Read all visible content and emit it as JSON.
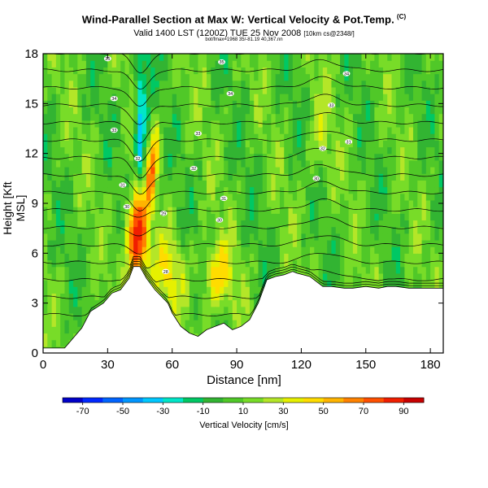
{
  "header": {
    "title": "Wind-Parallel Section at Max W: Vertical Velocity & Pot.Temp.",
    "copyright": "(C)",
    "subtitle": "Valid 1400 LST (1200Z) TUE 25 Nov 2008",
    "subtitle_small": "[10km cs@2348/]",
    "meta": "bot/fmax=1968 35/-81.19 40,367.nn"
  },
  "chart_data": {
    "type": "heatmap",
    "xlabel": "Distance [nm]",
    "ylabel": "Height [Kft MSL]",
    "xlim": [
      0,
      186
    ],
    "ylim": [
      0,
      18
    ],
    "x_ticks": [
      "0",
      "30",
      "60",
      "90",
      "120",
      "150",
      "180"
    ],
    "y_ticks": [
      "0",
      "3",
      "6",
      "9",
      "12",
      "15",
      "18"
    ],
    "x_tick_values": [
      0,
      30,
      60,
      90,
      120,
      150,
      180
    ],
    "y_tick_values": [
      0,
      3,
      6,
      9,
      12,
      15,
      18
    ],
    "colorbar": {
      "label": "Vertical Velocity [cm/s]",
      "tick_labels": [
        "-70",
        "-50",
        "-30",
        "-10",
        "10",
        "30",
        "50",
        "70",
        "90"
      ],
      "tick_values": [
        -70,
        -50,
        -30,
        -10,
        10,
        30,
        50,
        70,
        90
      ],
      "colors": [
        "#0000c8",
        "#0028ff",
        "#0064ff",
        "#0096ff",
        "#00c8ff",
        "#00e6c8",
        "#00c864",
        "#32b432",
        "#50c828",
        "#78dc28",
        "#b4e628",
        "#e6f000",
        "#ffdc00",
        "#ffb400",
        "#ff8200",
        "#ff5000",
        "#f01e00",
        "#c80000"
      ],
      "color_bounds": [
        -80,
        -70,
        -60,
        -50,
        -40,
        -30,
        -20,
        -10,
        0,
        10,
        20,
        30,
        40,
        50,
        60,
        70,
        80,
        90,
        100
      ]
    },
    "terrain_profile": {
      "x": [
        0,
        10,
        18,
        22,
        28,
        32,
        36,
        40,
        42,
        45,
        48,
        52,
        55,
        58,
        60,
        64,
        68,
        72,
        76,
        80,
        84,
        88,
        92,
        96,
        100,
        104,
        108,
        112,
        116,
        118,
        124,
        130,
        134,
        140,
        144,
        150,
        156,
        160,
        164,
        170,
        176,
        186
      ],
      "height": [
        0.3,
        0.3,
        1.5,
        2.5,
        3.0,
        3.6,
        3.8,
        4.5,
        5.2,
        5.2,
        4.5,
        3.8,
        3.4,
        3.0,
        2.4,
        1.6,
        1.2,
        1.0,
        1.4,
        1.6,
        1.8,
        1.4,
        1.6,
        2.0,
        3.0,
        4.4,
        4.6,
        4.7,
        4.9,
        4.8,
        4.6,
        4.0,
        4.0,
        3.9,
        3.9,
        4.0,
        3.9,
        4.0,
        4.0,
        3.9,
        3.9,
        3.9
      ]
    },
    "features": [
      {
        "name": "updraft",
        "x": 44,
        "height": 7.0,
        "value": 90
      },
      {
        "name": "downdraft",
        "x": 46,
        "height": 15.0,
        "value": -30
      },
      {
        "name": "updraft",
        "x": 81,
        "height": 4.6,
        "value": 40
      },
      {
        "name": "updraft",
        "x": 58,
        "height": 4.7,
        "value": 30
      }
    ],
    "contour_labels": [
      {
        "text": "35",
        "x": 30,
        "height": 17.7
      },
      {
        "text": "34",
        "x": 33,
        "height": 15.3
      },
      {
        "text": "33",
        "x": 33,
        "height": 13.4
      },
      {
        "text": "32",
        "x": 44,
        "height": 11.7
      },
      {
        "text": "31",
        "x": 37,
        "height": 10.1
      },
      {
        "text": "30",
        "x": 39,
        "height": 8.8
      },
      {
        "text": "29",
        "x": 56,
        "height": 8.4
      },
      {
        "text": "28",
        "x": 57,
        "height": 4.9
      },
      {
        "text": "35",
        "x": 83,
        "height": 17.5
      },
      {
        "text": "34",
        "x": 87,
        "height": 15.6
      },
      {
        "text": "33",
        "x": 72,
        "height": 13.2
      },
      {
        "text": "32",
        "x": 70,
        "height": 11.1
      },
      {
        "text": "31",
        "x": 84,
        "height": 9.3
      },
      {
        "text": "30",
        "x": 82,
        "height": 8.0
      },
      {
        "text": "34",
        "x": 141,
        "height": 16.8
      },
      {
        "text": "33",
        "x": 134,
        "height": 14.9
      },
      {
        "text": "32",
        "x": 130,
        "height": 12.3
      },
      {
        "text": "31",
        "x": 142,
        "height": 12.7
      },
      {
        "text": "30",
        "x": 127,
        "height": 10.5
      }
    ]
  }
}
